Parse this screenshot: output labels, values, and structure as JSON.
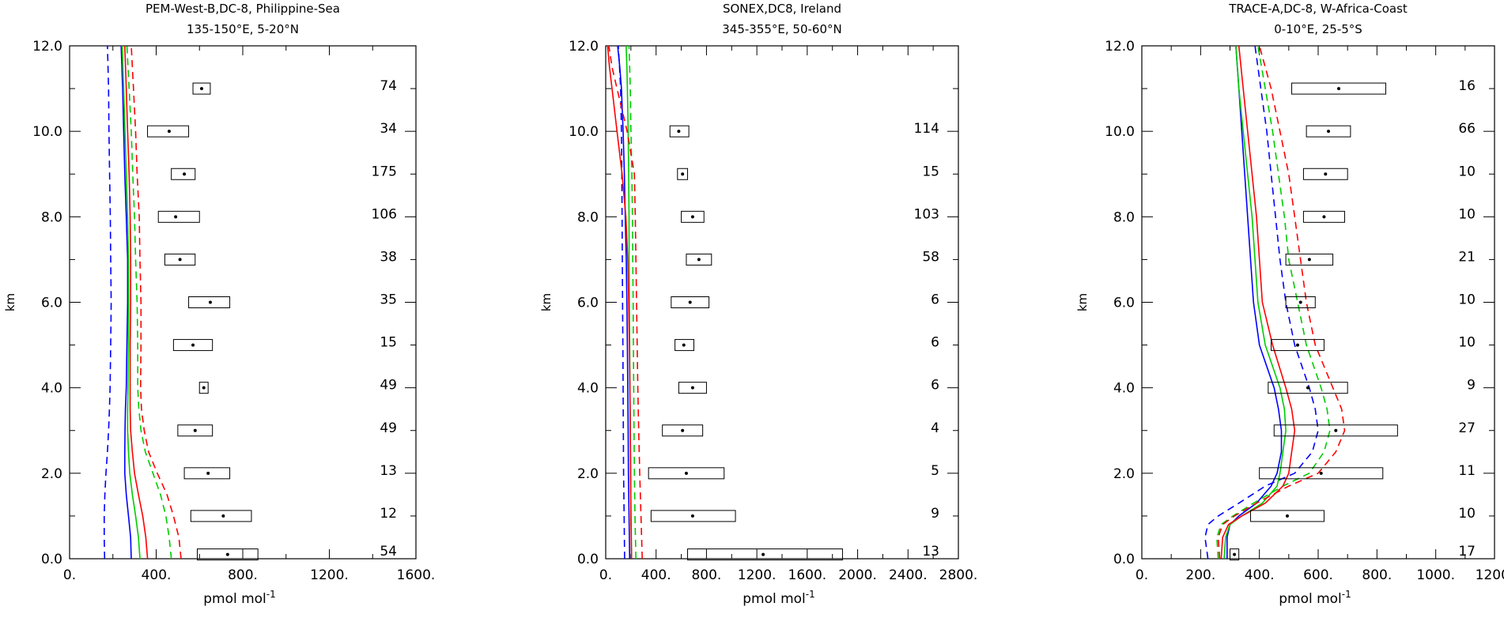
{
  "ylabel": "km",
  "xlabel_main": "pmol mol",
  "xlabel_exp": "-1",
  "chart_data": [
    {
      "type": "line",
      "title_line1": "PEM-West-B,DC-8, Philippine-Sea",
      "title_line2": "135-150°E, 5-20°N",
      "xlim": [
        0,
        1600
      ],
      "ylim": [
        0,
        12
      ],
      "xticks": [
        "0.",
        "400.",
        "800.",
        "1200.",
        "1600."
      ],
      "yticks": [
        "0.0",
        "2.0",
        "4.0",
        "6.0",
        "8.0",
        "10.0",
        "12.0"
      ],
      "y": [
        0,
        0.5,
        1,
        1.5,
        2,
        2.5,
        3,
        3.5,
        4,
        5,
        6,
        7,
        8,
        9,
        10,
        11,
        12
      ],
      "series": [
        {
          "color": "#0000ff",
          "dash": false,
          "values": [
            285,
            282,
            272,
            262,
            255,
            255,
            256,
            258,
            262,
            265,
            268,
            268,
            262,
            255,
            250,
            245,
            238
          ]
        },
        {
          "color": "#0000ff",
          "dash": true,
          "values": [
            162,
            160,
            160,
            163,
            168,
            175,
            180,
            184,
            187,
            190,
            192,
            190,
            188,
            185,
            182,
            180,
            175
          ]
        },
        {
          "color": "#00cc00",
          "dash": false,
          "values": [
            325,
            318,
            305,
            290,
            278,
            272,
            268,
            268,
            270,
            272,
            273,
            272,
            268,
            262,
            256,
            250,
            243
          ]
        },
        {
          "color": "#00cc00",
          "dash": true,
          "values": [
            470,
            460,
            445,
            420,
            385,
            350,
            330,
            320,
            315,
            315,
            312,
            305,
            300,
            292,
            285,
            275,
            265
          ]
        },
        {
          "color": "#ff0000",
          "dash": false,
          "values": [
            360,
            352,
            338,
            318,
            300,
            290,
            282,
            280,
            280,
            280,
            282,
            282,
            280,
            275,
            268,
            262,
            255
          ]
        },
        {
          "color": "#ff0000",
          "dash": true,
          "values": [
            515,
            505,
            480,
            450,
            405,
            365,
            345,
            332,
            328,
            330,
            330,
            325,
            322,
            312,
            305,
            295,
            285
          ]
        }
      ],
      "boxes": [
        {
          "y": 11,
          "lo": 570,
          "hi": 650,
          "mean": 610
        },
        {
          "y": 10,
          "lo": 360,
          "hi": 550,
          "mean": 460
        },
        {
          "y": 9,
          "lo": 470,
          "hi": 580,
          "mean": 530
        },
        {
          "y": 8,
          "lo": 410,
          "hi": 600,
          "mean": 490
        },
        {
          "y": 7,
          "lo": 440,
          "hi": 580,
          "mean": 510
        },
        {
          "y": 6,
          "lo": 550,
          "hi": 740,
          "mean": 650
        },
        {
          "y": 5,
          "lo": 480,
          "hi": 660,
          "mean": 570
        },
        {
          "y": 4,
          "lo": 600,
          "hi": 640,
          "mean": 620
        },
        {
          "y": 3,
          "lo": 500,
          "hi": 660,
          "mean": 580
        },
        {
          "y": 2,
          "lo": 530,
          "hi": 740,
          "mean": 640
        },
        {
          "y": 1,
          "lo": 560,
          "hi": 840,
          "mean": 710
        },
        {
          "y": 0.1,
          "lo": 590,
          "hi": 870,
          "mean": 730
        }
      ],
      "counts": [
        {
          "y": 11,
          "n": "74"
        },
        {
          "y": 10,
          "n": "34"
        },
        {
          "y": 9,
          "n": "175"
        },
        {
          "y": 8,
          "n": "106"
        },
        {
          "y": 7,
          "n": "38"
        },
        {
          "y": 6,
          "n": "35"
        },
        {
          "y": 5,
          "n": "15"
        },
        {
          "y": 4,
          "n": "49"
        },
        {
          "y": 3,
          "n": "49"
        },
        {
          "y": 2,
          "n": "13"
        },
        {
          "y": 1,
          "n": "12"
        },
        {
          "y": 0,
          "n": "54"
        }
      ]
    },
    {
      "type": "line",
      "title_line1": "SONEX,DC8, Ireland",
      "title_line2": "345-355°E, 50-60°N",
      "xlim": [
        0,
        2800
      ],
      "ylim": [
        0,
        12
      ],
      "xticks": [
        "0.",
        "400.",
        "800.",
        "1200.",
        "1600.",
        "2000.",
        "2400.",
        "2800."
      ],
      "yticks": [
        "0.0",
        "2.0",
        "4.0",
        "6.0",
        "8.0",
        "10.0",
        "12.0"
      ],
      "y": [
        0,
        0.5,
        1,
        2,
        3,
        4,
        5,
        6,
        7,
        8,
        9,
        10,
        11,
        11.5,
        12
      ],
      "series": [
        {
          "color": "#0000ff",
          "dash": false,
          "values": [
            190,
            188,
            185,
            180,
            178,
            175,
            172,
            168,
            163,
            155,
            148,
            138,
            125,
            112,
            95
          ]
        },
        {
          "color": "#0000ff",
          "dash": true,
          "values": [
            150,
            148,
            146,
            142,
            140,
            138,
            136,
            134,
            132,
            130,
            128,
            125,
            118,
            110,
            100
          ]
        },
        {
          "color": "#00cc00",
          "dash": false,
          "values": [
            205,
            203,
            200,
            198,
            195,
            192,
            190,
            188,
            186,
            185,
            182,
            178,
            172,
            168,
            162
          ]
        },
        {
          "color": "#00cc00",
          "dash": true,
          "values": [
            240,
            236,
            232,
            228,
            225,
            222,
            220,
            218,
            215,
            212,
            208,
            200,
            195,
            190,
            185
          ]
        },
        {
          "color": "#ff0000",
          "dash": false,
          "values": [
            205,
            203,
            200,
            198,
            195,
            192,
            188,
            183,
            175,
            160,
            130,
            90,
            50,
            30,
            15
          ]
        },
        {
          "color": "#ff0000",
          "dash": true,
          "values": [
            290,
            285,
            280,
            270,
            262,
            255,
            250,
            245,
            240,
            235,
            228,
            170,
            90,
            50,
            25
          ]
        }
      ],
      "boxes": [
        {
          "y": 10,
          "lo": 510,
          "hi": 660,
          "mean": 580
        },
        {
          "y": 9,
          "lo": 570,
          "hi": 650,
          "mean": 610
        },
        {
          "y": 8,
          "lo": 600,
          "hi": 780,
          "mean": 690
        },
        {
          "y": 7,
          "lo": 640,
          "hi": 840,
          "mean": 740
        },
        {
          "y": 6,
          "lo": 520,
          "hi": 820,
          "mean": 670
        },
        {
          "y": 5,
          "lo": 550,
          "hi": 700,
          "mean": 620
        },
        {
          "y": 4,
          "lo": 580,
          "hi": 800,
          "mean": 690
        },
        {
          "y": 3,
          "lo": 450,
          "hi": 770,
          "mean": 610
        },
        {
          "y": 2,
          "lo": 340,
          "hi": 940,
          "mean": 640
        },
        {
          "y": 1,
          "lo": 360,
          "hi": 1030,
          "mean": 690
        },
        {
          "y": 0.1,
          "lo": 650,
          "hi": 1880,
          "mean": 1250
        }
      ],
      "counts": [
        {
          "y": 10,
          "n": "114"
        },
        {
          "y": 9,
          "n": "15"
        },
        {
          "y": 8,
          "n": "103"
        },
        {
          "y": 7,
          "n": "58"
        },
        {
          "y": 6,
          "n": "6"
        },
        {
          "y": 5,
          "n": "6"
        },
        {
          "y": 4,
          "n": "6"
        },
        {
          "y": 3,
          "n": "4"
        },
        {
          "y": 2,
          "n": "5"
        },
        {
          "y": 1,
          "n": "9"
        },
        {
          "y": 0,
          "n": "13"
        }
      ]
    },
    {
      "type": "line",
      "title_line1": "TRACE-A,DC-8, W-Africa-Coast",
      "title_line2": "0-10°E, 25-5°S",
      "xlim": [
        0,
        1200
      ],
      "ylim": [
        0,
        12
      ],
      "xticks": [
        "0.",
        "200.",
        "400.",
        "600.",
        "800.",
        "1000.",
        "1200."
      ],
      "yticks": [
        "0.0",
        "2.0",
        "4.0",
        "6.0",
        "8.0",
        "10.0",
        "12.0"
      ],
      "y": [
        0,
        0.5,
        0.8,
        1,
        1.3,
        1.7,
        2,
        2.5,
        3,
        3.5,
        4,
        5,
        6,
        7,
        8,
        9,
        10,
        11,
        12
      ],
      "series": [
        {
          "color": "#0000ff",
          "dash": false,
          "values": [
            290,
            290,
            300,
            330,
            390,
            440,
            460,
            475,
            475,
            465,
            450,
            400,
            380,
            370,
            360,
            350,
            340,
            330,
            320
          ]
        },
        {
          "color": "#0000ff",
          "dash": true,
          "values": [
            225,
            215,
            225,
            260,
            330,
            420,
            520,
            580,
            600,
            590,
            570,
            520,
            490,
            470,
            455,
            440,
            425,
            405,
            385
          ]
        },
        {
          "color": "#00cc00",
          "dash": false,
          "values": [
            280,
            285,
            300,
            340,
            410,
            460,
            470,
            480,
            490,
            485,
            470,
            420,
            395,
            385,
            375,
            360,
            345,
            330,
            320
          ]
        },
        {
          "color": "#00cc00",
          "dash": true,
          "values": [
            260,
            255,
            270,
            310,
            380,
            480,
            570,
            620,
            640,
            630,
            610,
            560,
            530,
            500,
            485,
            465,
            445,
            420,
            395
          ]
        },
        {
          "color": "#ff0000",
          "dash": false,
          "values": [
            270,
            275,
            295,
            340,
            420,
            480,
            500,
            510,
            520,
            510,
            490,
            445,
            410,
            400,
            390,
            375,
            360,
            345,
            330
          ]
        },
        {
          "color": "#ff0000",
          "dash": true,
          "values": [
            265,
            260,
            275,
            315,
            390,
            500,
            600,
            660,
            690,
            680,
            650,
            590,
            560,
            540,
            520,
            500,
            470,
            440,
            400
          ]
        }
      ],
      "boxes": [
        {
          "y": 11,
          "lo": 510,
          "hi": 830,
          "mean": 670
        },
        {
          "y": 10,
          "lo": 560,
          "hi": 710,
          "mean": 635
        },
        {
          "y": 9,
          "lo": 550,
          "hi": 700,
          "mean": 625
        },
        {
          "y": 8,
          "lo": 550,
          "hi": 690,
          "mean": 620
        },
        {
          "y": 7,
          "lo": 490,
          "hi": 650,
          "mean": 570
        },
        {
          "y": 6,
          "lo": 490,
          "hi": 590,
          "mean": 540
        },
        {
          "y": 5,
          "lo": 440,
          "hi": 620,
          "mean": 530
        },
        {
          "y": 4,
          "lo": 430,
          "hi": 700,
          "mean": 565
        },
        {
          "y": 3,
          "lo": 450,
          "hi": 870,
          "mean": 660
        },
        {
          "y": 2,
          "lo": 400,
          "hi": 820,
          "mean": 610
        },
        {
          "y": 1,
          "lo": 370,
          "hi": 620,
          "mean": 495
        },
        {
          "y": 0.1,
          "lo": 300,
          "hi": 330,
          "mean": 315
        }
      ],
      "counts": [
        {
          "y": 11,
          "n": "16"
        },
        {
          "y": 10,
          "n": "66"
        },
        {
          "y": 9,
          "n": "10"
        },
        {
          "y": 8,
          "n": "10"
        },
        {
          "y": 7,
          "n": "21"
        },
        {
          "y": 6,
          "n": "10"
        },
        {
          "y": 5,
          "n": "10"
        },
        {
          "y": 4,
          "n": "9"
        },
        {
          "y": 3,
          "n": "27"
        },
        {
          "y": 2,
          "n": "11"
        },
        {
          "y": 1,
          "n": "10"
        },
        {
          "y": 0,
          "n": "17"
        }
      ]
    }
  ]
}
